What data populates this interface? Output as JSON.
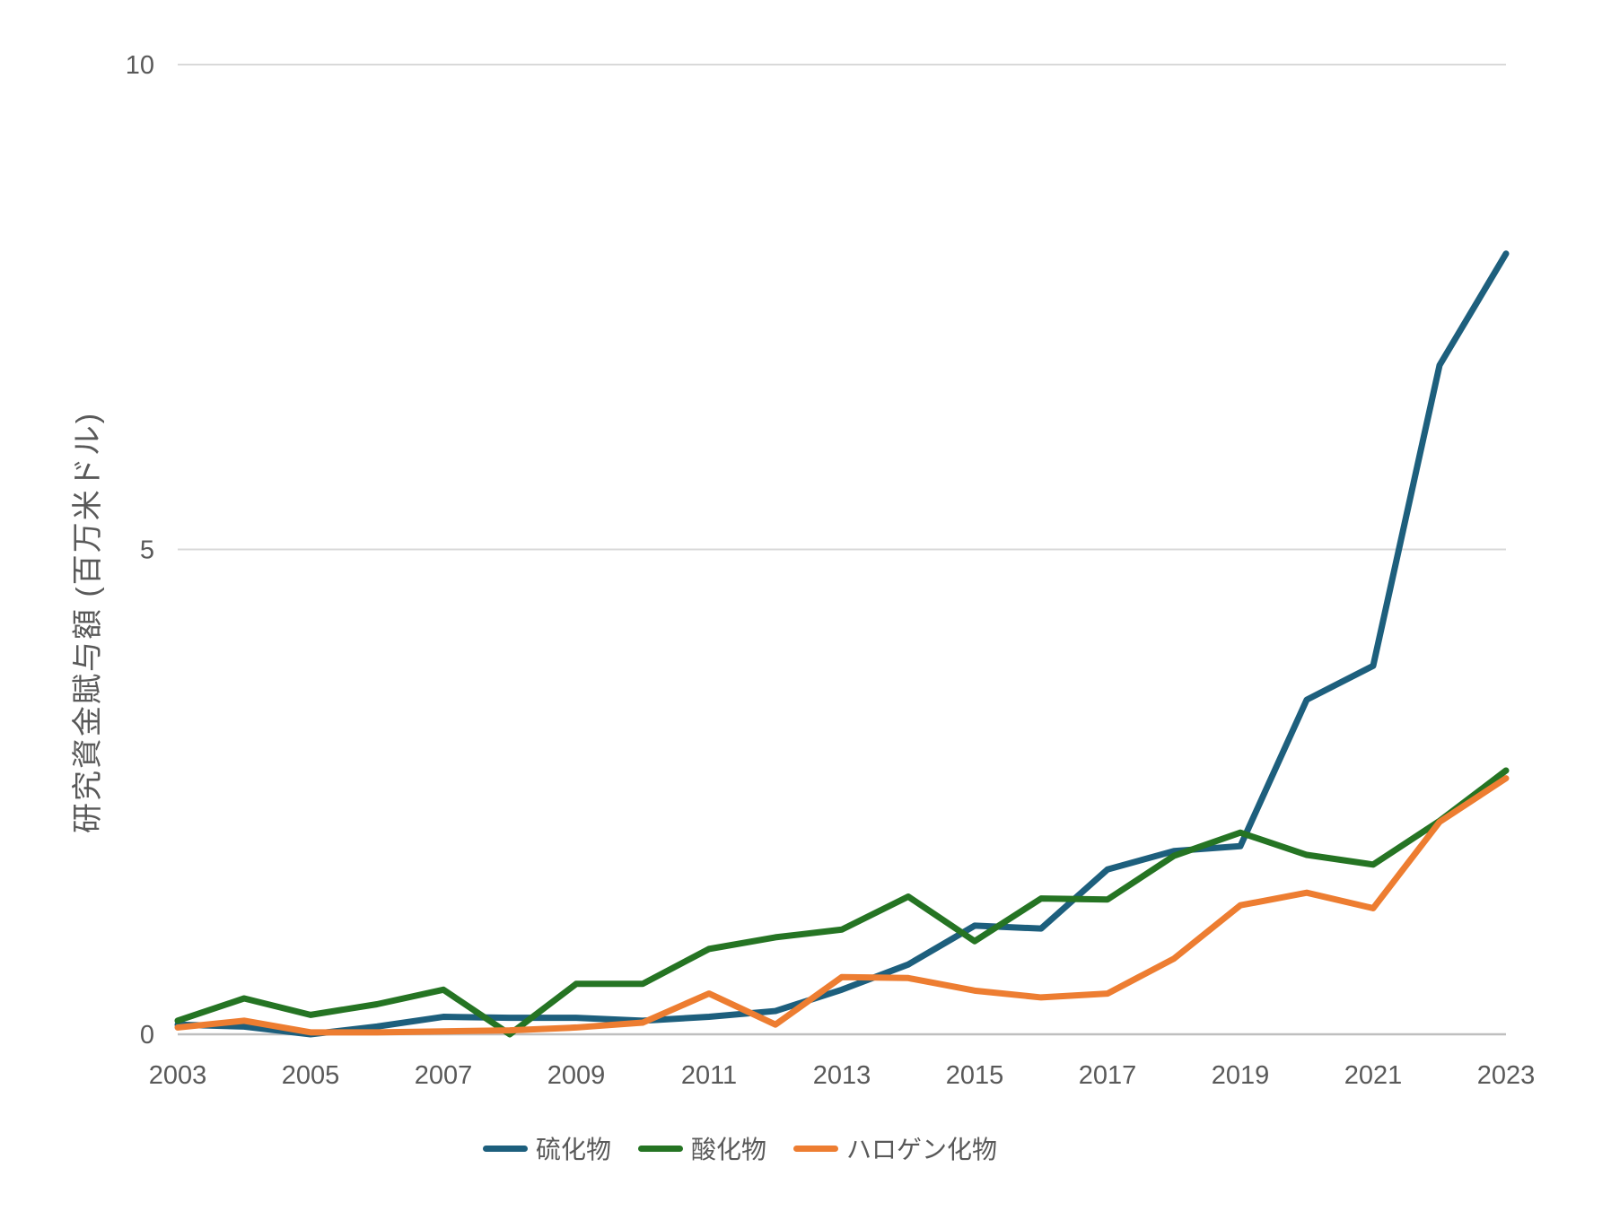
{
  "chart_data": {
    "type": "line",
    "title": "",
    "xlabel": "",
    "ylabel": "研究資金賦与額 (百万米ドル)",
    "x": [
      2003,
      2004,
      2005,
      2006,
      2007,
      2008,
      2009,
      2010,
      2011,
      2012,
      2013,
      2014,
      2015,
      2016,
      2017,
      2018,
      2019,
      2020,
      2021,
      2022,
      2023
    ],
    "x_tick_labels": [
      "2003",
      "2005",
      "2007",
      "2009",
      "2011",
      "2013",
      "2015",
      "2017",
      "2019",
      "2021",
      "2023"
    ],
    "y_tick_labels": [
      "0",
      "5",
      "10"
    ],
    "y_tick_values": [
      0,
      5,
      10
    ],
    "ylim": [
      0,
      10
    ],
    "grid": "horizontal-only",
    "legend_position": "bottom-center",
    "series": [
      {
        "name": "硫化物",
        "color": "#1d5f7d",
        "values": [
          0.1,
          0.08,
          0.0,
          0.08,
          0.18,
          0.17,
          0.17,
          0.14,
          0.18,
          0.24,
          0.46,
          0.72,
          1.12,
          1.09,
          1.7,
          1.89,
          1.94,
          3.45,
          3.8,
          6.9,
          8.05
        ]
      },
      {
        "name": "酸化物",
        "color": "#257423",
        "values": [
          0.14,
          0.37,
          0.2,
          0.31,
          0.46,
          0.0,
          0.52,
          0.52,
          0.88,
          1.0,
          1.08,
          1.42,
          0.96,
          1.4,
          1.39,
          1.84,
          2.08,
          1.85,
          1.75,
          2.2,
          2.72
        ]
      },
      {
        "name": "ハロゲン化物",
        "color": "#ed7d31",
        "values": [
          0.07,
          0.14,
          0.02,
          0.02,
          0.03,
          0.04,
          0.07,
          0.12,
          0.42,
          0.1,
          0.59,
          0.58,
          0.45,
          0.38,
          0.42,
          0.78,
          1.33,
          1.46,
          1.3,
          2.19,
          2.64
        ]
      }
    ]
  },
  "colors": {
    "axis_text": "#595959",
    "gridline": "#d9d9d9",
    "axis_line": "#bfbfbf",
    "background": "#ffffff"
  }
}
